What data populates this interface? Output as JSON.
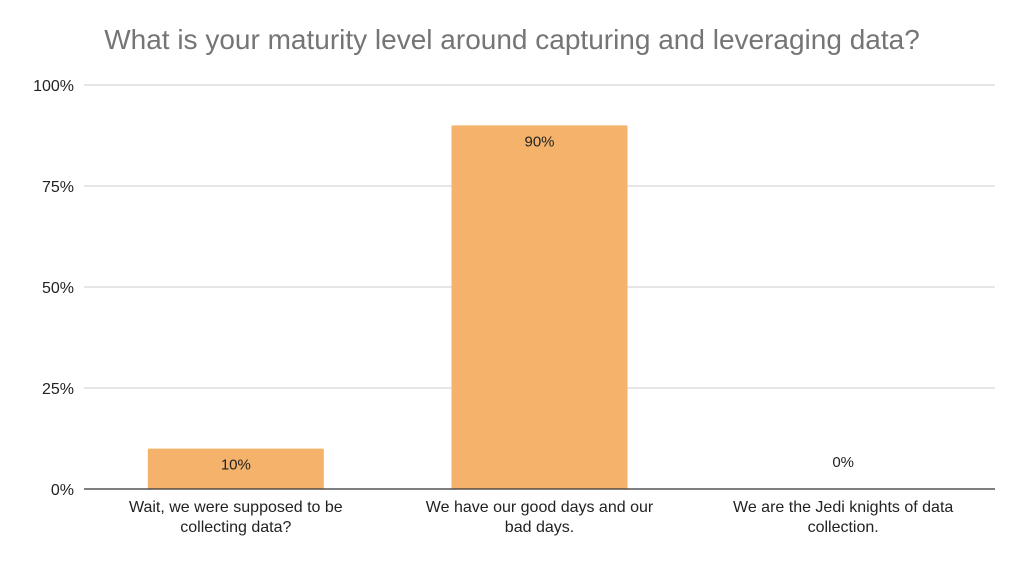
{
  "chart_data": {
    "type": "bar",
    "title": "What is your maturity level around capturing and leveraging data?",
    "xlabel": "",
    "ylabel": "",
    "ylim": [
      0,
      100
    ],
    "y_ticks": [
      "0%",
      "25%",
      "50%",
      "75%",
      "100%"
    ],
    "y_tick_values": [
      0,
      25,
      50,
      75,
      100
    ],
    "categories": [
      [
        "Wait, we were supposed to be",
        "collecting data?"
      ],
      [
        "We have our good days and our",
        "bad days."
      ],
      [
        "We are the Jedi knights of data",
        "collection."
      ]
    ],
    "values": [
      10,
      90,
      0
    ],
    "data_labels": [
      "10%",
      "90%",
      "0%"
    ],
    "grid": true,
    "legend": "none",
    "colors": {
      "bar": "#f4b26b",
      "zero_label": "#f4b26b",
      "label": "#222222",
      "title": "#757575",
      "grid": "#cccccc",
      "axis": "#333333"
    }
  }
}
